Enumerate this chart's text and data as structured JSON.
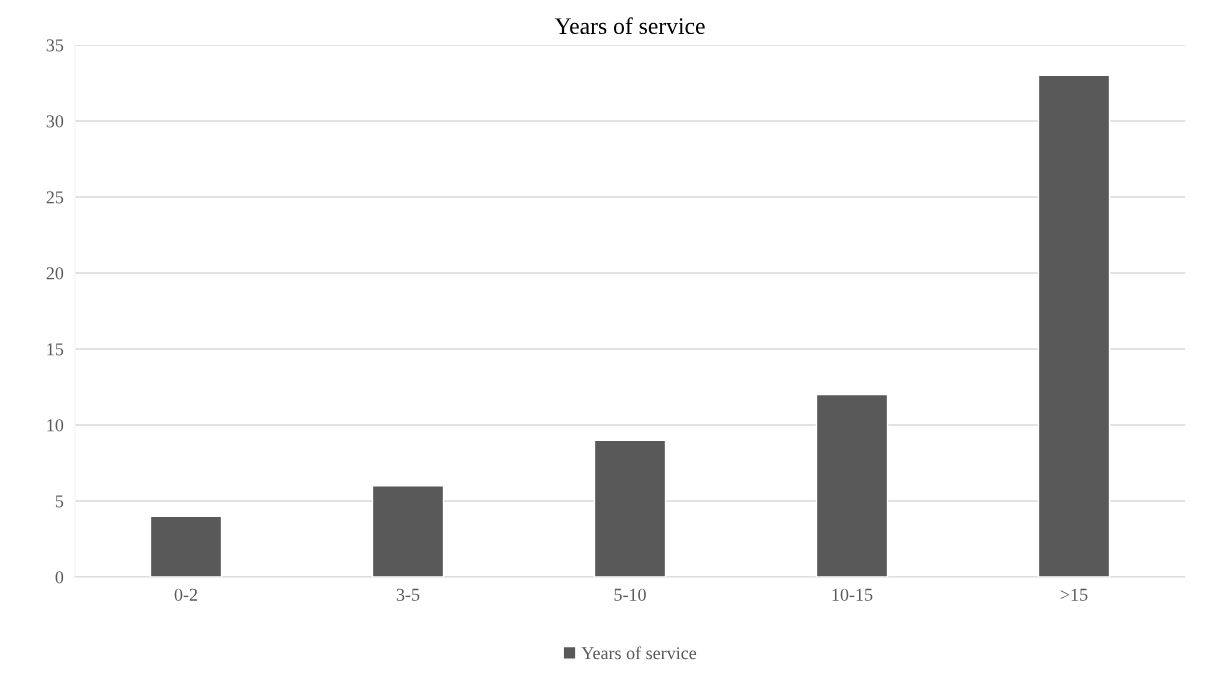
{
  "chart_data": {
    "type": "bar",
    "title": "Years of service",
    "categories": [
      "0-2",
      "3-5",
      "5-10",
      "10-15",
      ">15"
    ],
    "series": [
      {
        "name": "Years of service",
        "color": "#595959",
        "values": [
          4,
          6,
          9,
          12,
          33
        ]
      }
    ],
    "ylim": [
      0,
      35
    ],
    "yticks": [
      0,
      5,
      10,
      15,
      20,
      25,
      30,
      35
    ],
    "grid": "y",
    "legend": "bottom"
  }
}
